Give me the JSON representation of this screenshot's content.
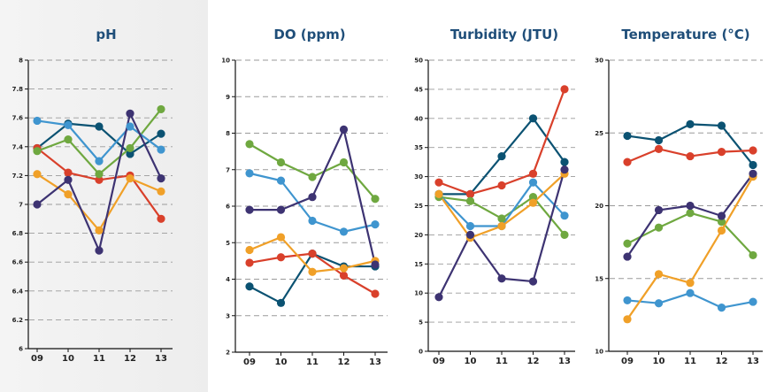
{
  "colors": {
    "navy": "#0b5272",
    "red": "#d9402b",
    "green": "#6fa840",
    "blue": "#3f95cf",
    "orange": "#f0a028",
    "purple": "#3d3372",
    "title": "#1f4e79",
    "axis": "#111111",
    "grid": "#9a9a9a"
  },
  "chart_data": [
    {
      "type": "line",
      "title": "pH",
      "categories": [
        "09",
        "10",
        "11",
        "12",
        "13"
      ],
      "ylim": [
        6,
        8
      ],
      "yticks": [
        "6",
        "6.2",
        "6.4",
        "6.6",
        "6.8",
        "7",
        "7.2",
        "7.4",
        "7.6",
        "7.8",
        "8"
      ],
      "grid": true,
      "series": [
        {
          "color": "#0b5272",
          "values": [
            7.39,
            7.56,
            7.54,
            7.35,
            7.49
          ]
        },
        {
          "color": "#d9402b",
          "values": [
            7.39,
            7.22,
            7.17,
            7.2,
            6.9
          ]
        },
        {
          "color": "#6fa840",
          "values": [
            7.37,
            7.45,
            7.21,
            7.39,
            7.66
          ]
        },
        {
          "color": "#3f95cf",
          "values": [
            7.58,
            7.55,
            7.3,
            7.54,
            7.38
          ]
        },
        {
          "color": "#f0a028",
          "values": [
            7.21,
            7.07,
            6.82,
            7.18,
            7.09
          ]
        },
        {
          "color": "#3d3372",
          "values": [
            7.0,
            7.17,
            6.68,
            7.63,
            7.18
          ]
        }
      ]
    },
    {
      "type": "line",
      "title": "DO (ppm)",
      "categories": [
        "09",
        "10",
        "11",
        "12",
        "13"
      ],
      "ylim": [
        2,
        10
      ],
      "yticks": [
        "2",
        "3",
        "4",
        "5",
        "6",
        "7",
        "8",
        "9",
        "10"
      ],
      "grid": true,
      "series": [
        {
          "color": "#0b5272",
          "values": [
            3.8,
            3.35,
            4.7,
            4.35,
            4.35
          ]
        },
        {
          "color": "#d9402b",
          "values": [
            4.45,
            4.6,
            4.7,
            4.1,
            3.6
          ]
        },
        {
          "color": "#6fa840",
          "values": [
            7.7,
            7.2,
            6.8,
            7.2,
            6.2
          ]
        },
        {
          "color": "#3f95cf",
          "values": [
            6.9,
            6.7,
            5.6,
            5.3,
            5.5
          ]
        },
        {
          "color": "#f0a028",
          "values": [
            4.8,
            5.15,
            4.2,
            4.3,
            4.5
          ]
        },
        {
          "color": "#3d3372",
          "values": [
            5.9,
            5.9,
            6.25,
            8.1,
            4.4
          ]
        }
      ]
    },
    {
      "type": "line",
      "title": "Turbidity (JTU)",
      "categories": [
        "09",
        "10",
        "11",
        "12",
        "13"
      ],
      "ylim": [
        0,
        50
      ],
      "yticks": [
        "0",
        "5",
        "10",
        "15",
        "20",
        "25",
        "30",
        "35",
        "40",
        "45",
        "50"
      ],
      "grid": true,
      "series": [
        {
          "color": "#0b5272",
          "values": [
            27,
            27,
            33.5,
            40,
            32.5
          ]
        },
        {
          "color": "#d9402b",
          "values": [
            29,
            27,
            28.5,
            30.5,
            45
          ]
        },
        {
          "color": "#6fa840",
          "values": [
            26.5,
            25.8,
            22.8,
            26.5,
            20
          ]
        },
        {
          "color": "#3f95cf",
          "values": [
            27,
            21.5,
            21.5,
            29,
            23.3
          ]
        },
        {
          "color": "#f0a028",
          "values": [
            27,
            19.5,
            21.5,
            25.5,
            30.5
          ]
        },
        {
          "color": "#3d3372",
          "values": [
            9.3,
            20,
            12.5,
            12,
            31.2
          ]
        }
      ]
    },
    {
      "type": "line",
      "title": "Temperature (°C)",
      "categories": [
        "09",
        "10",
        "11",
        "12",
        "13"
      ],
      "ylim": [
        10,
        30
      ],
      "yticks": [
        "10",
        "15",
        "20",
        "25",
        "30"
      ],
      "grid": true,
      "series": [
        {
          "color": "#0b5272",
          "values": [
            24.8,
            24.5,
            25.6,
            25.5,
            22.8
          ]
        },
        {
          "color": "#d9402b",
          "values": [
            23.0,
            23.9,
            23.4,
            23.7,
            23.8
          ]
        },
        {
          "color": "#6fa840",
          "values": [
            17.4,
            18.5,
            19.5,
            18.9,
            16.6
          ]
        },
        {
          "color": "#3f95cf",
          "values": [
            13.5,
            13.3,
            14.0,
            13.0,
            13.4
          ]
        },
        {
          "color": "#f0a028",
          "values": [
            12.2,
            15.3,
            14.7,
            18.3,
            22.0
          ]
        },
        {
          "color": "#3d3372",
          "values": [
            16.5,
            19.7,
            20.0,
            19.3,
            22.2
          ]
        }
      ]
    }
  ]
}
